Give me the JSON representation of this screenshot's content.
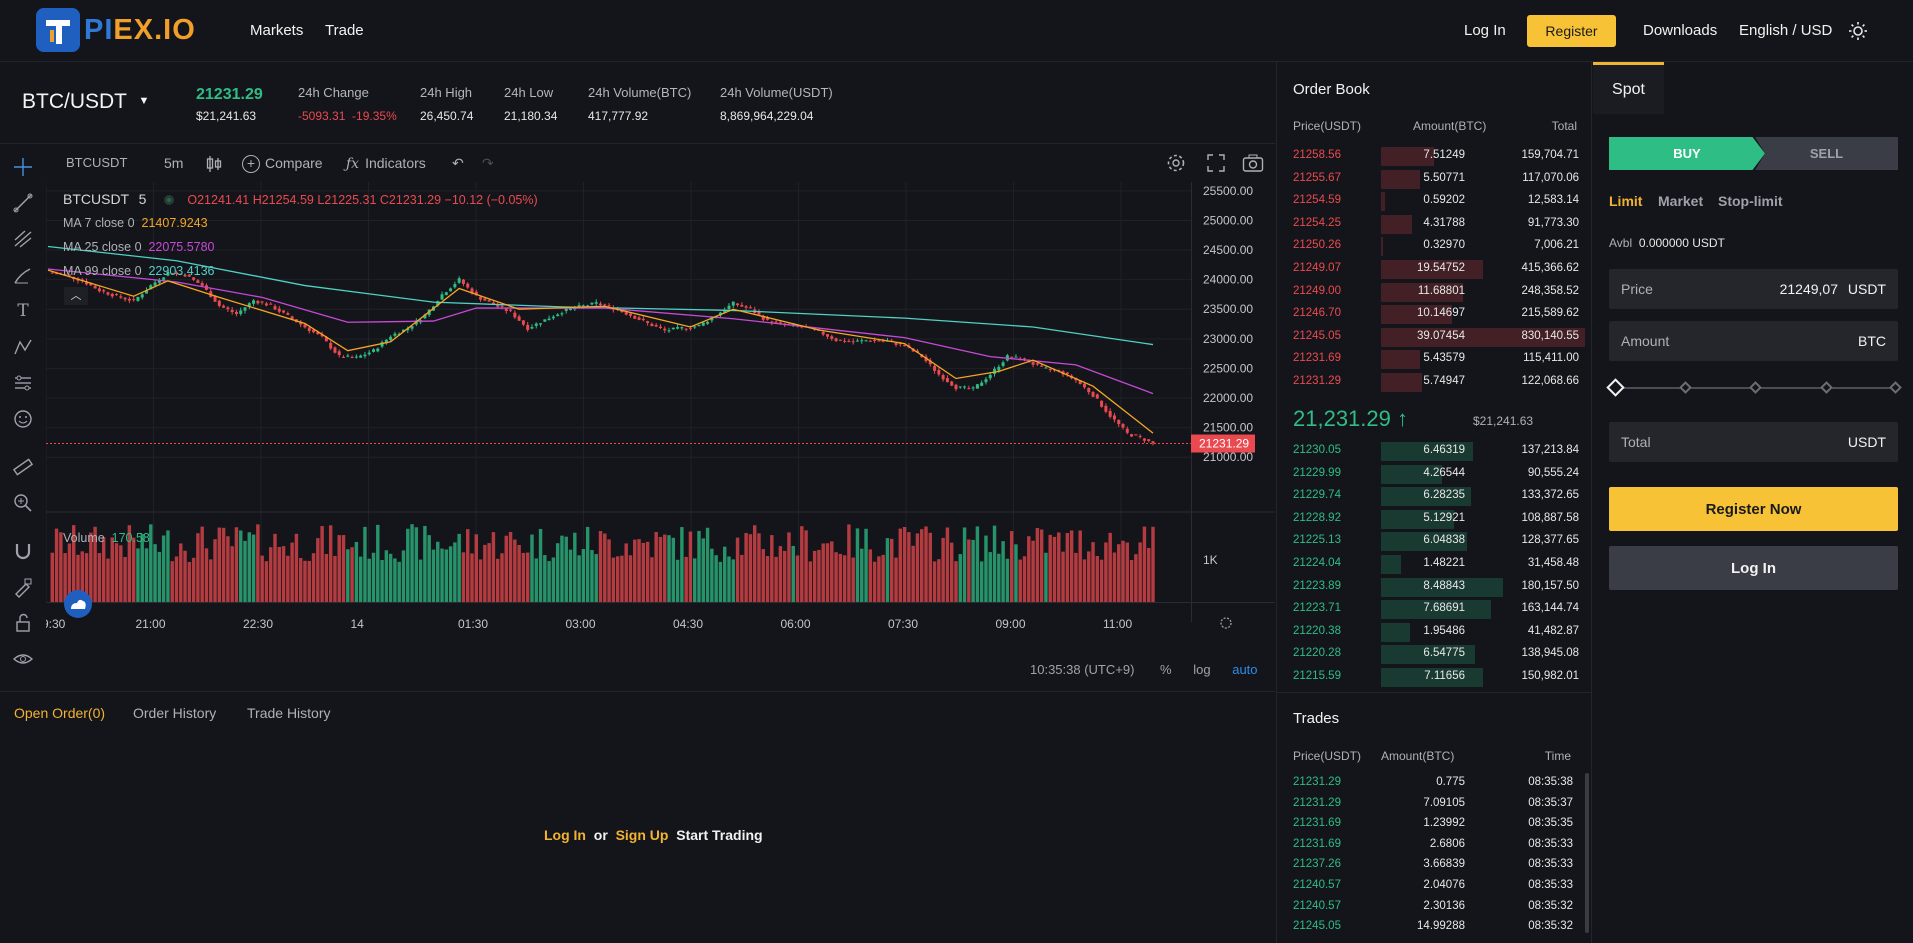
{
  "header": {
    "logo_text_a": "PI",
    "logo_text_b": "EX.IO",
    "nav": [
      "Markets",
      "Trade"
    ],
    "login": "Log In",
    "register": "Register",
    "downloads": "Downloads",
    "locale": "English / USD",
    "theme_icon": "sun-icon"
  },
  "ticker": {
    "pair": "BTC/USDT",
    "last_price": "21231.29",
    "last_price_fiat": "$21,241.63",
    "change_label": "24h Change",
    "change_value": "-5093.31",
    "change_pct": "-19.35%",
    "high_label": "24h High",
    "high_value": "26,450.74",
    "low_label": "24h Low",
    "low_value": "21,180.34",
    "vol_btc_label": "24h Volume(BTC)",
    "vol_btc_value": "417,777.92",
    "vol_usdt_label": "24h Volume(USDT)",
    "vol_usdt_value": "8,869,964,229.04"
  },
  "chart_toolbar": {
    "symbol": "BTCUSDT",
    "interval": "5m",
    "compare": "Compare",
    "indicators": "Indicators"
  },
  "chart_legend": {
    "symbol": "BTCUSDT",
    "interval": "5",
    "ohlc": "O21241.41  H21254.59  L21225.31  C21231.29  −10.12 (−0.05%)",
    "ma7_label": "MA 7 close 0",
    "ma7_value": "21407.9243",
    "ma25_label": "MA 25 close 0",
    "ma25_value": "22075.5780",
    "ma99_label": "MA 99 close 0",
    "ma99_value": "22903.4136",
    "volume_label": "Volume",
    "volume_value": "170.58"
  },
  "chart_footer": {
    "time": "10:35:38 (UTC+9)",
    "pct": "%",
    "log": "log",
    "auto": "auto"
  },
  "chart_data": {
    "type": "candlestick",
    "symbol": "BTCUSDT",
    "interval": "5m",
    "y_ticks": [
      "25500.00",
      "25000.00",
      "24500.00",
      "24000.00",
      "23500.00",
      "23000.00",
      "22500.00",
      "22000.00",
      "21500.00",
      "21000.00"
    ],
    "ylim": [
      20750,
      25650
    ],
    "x_ticks": [
      ":9:30",
      "21:00",
      "22:30",
      "14",
      "01:30",
      "03:00",
      "04:30",
      "06:00",
      "07:30",
      "09:00",
      "11:00"
    ],
    "last_price_label": "21231.29",
    "volume_tick": "1K",
    "close_path": [
      [
        0,
        24120
      ],
      [
        4,
        24080
      ],
      [
        8,
        23980
      ],
      [
        12,
        23820
      ],
      [
        16,
        23720
      ],
      [
        20,
        23640
      ],
      [
        24,
        23900
      ],
      [
        28,
        24120
      ],
      [
        32,
        24080
      ],
      [
        36,
        23900
      ],
      [
        40,
        23560
      ],
      [
        44,
        23420
      ],
      [
        48,
        23650
      ],
      [
        52,
        23560
      ],
      [
        56,
        23380
      ],
      [
        60,
        23200
      ],
      [
        64,
        23020
      ],
      [
        68,
        22700
      ],
      [
        72,
        22680
      ],
      [
        76,
        22800
      ],
      [
        80,
        23050
      ],
      [
        84,
        23180
      ],
      [
        88,
        23400
      ],
      [
        92,
        23750
      ],
      [
        96,
        24000
      ],
      [
        100,
        23720
      ],
      [
        104,
        23580
      ],
      [
        108,
        23450
      ],
      [
        112,
        23180
      ],
      [
        116,
        23320
      ],
      [
        120,
        23460
      ],
      [
        124,
        23540
      ],
      [
        128,
        23600
      ],
      [
        132,
        23520
      ],
      [
        136,
        23400
      ],
      [
        140,
        23260
      ],
      [
        144,
        23140
      ],
      [
        148,
        23180
      ],
      [
        152,
        23220
      ],
      [
        156,
        23400
      ],
      [
        160,
        23600
      ],
      [
        164,
        23500
      ],
      [
        168,
        23300
      ],
      [
        172,
        23240
      ],
      [
        176,
        23200
      ],
      [
        180,
        23120
      ],
      [
        184,
        22980
      ],
      [
        188,
        22950
      ],
      [
        192,
        22980
      ],
      [
        196,
        22960
      ],
      [
        200,
        22880
      ],
      [
        204,
        22700
      ],
      [
        208,
        22400
      ],
      [
        212,
        22180
      ],
      [
        216,
        22150
      ],
      [
        220,
        22400
      ],
      [
        224,
        22700
      ],
      [
        228,
        22650
      ],
      [
        232,
        22500
      ],
      [
        236,
        22460
      ],
      [
        240,
        22300
      ],
      [
        244,
        22050
      ],
      [
        248,
        21700
      ],
      [
        252,
        21400
      ],
      [
        256,
        21300
      ],
      [
        258,
        21231
      ]
    ],
    "ma7_path": [
      [
        0,
        24160
      ],
      [
        20,
        23720
      ],
      [
        28,
        23980
      ],
      [
        40,
        23700
      ],
      [
        60,
        23260
      ],
      [
        70,
        22800
      ],
      [
        80,
        22950
      ],
      [
        96,
        23850
      ],
      [
        110,
        23500
      ],
      [
        130,
        23550
      ],
      [
        150,
        23200
      ],
      [
        160,
        23500
      ],
      [
        180,
        23150
      ],
      [
        200,
        22920
      ],
      [
        212,
        22330
      ],
      [
        222,
        22450
      ],
      [
        230,
        22640
      ],
      [
        244,
        22200
      ],
      [
        258,
        21407
      ]
    ],
    "ma25_path": [
      [
        0,
        24180
      ],
      [
        30,
        23960
      ],
      [
        50,
        23700
      ],
      [
        70,
        23280
      ],
      [
        90,
        23300
      ],
      [
        100,
        23520
      ],
      [
        130,
        23520
      ],
      [
        160,
        23340
      ],
      [
        180,
        23180
      ],
      [
        200,
        23020
      ],
      [
        220,
        22700
      ],
      [
        240,
        22560
      ],
      [
        258,
        22075
      ]
    ],
    "ma99_path": [
      [
        0,
        24560
      ],
      [
        30,
        24320
      ],
      [
        60,
        23900
      ],
      [
        90,
        23620
      ],
      [
        120,
        23540
      ],
      [
        160,
        23480
      ],
      [
        200,
        23350
      ],
      [
        230,
        23200
      ],
      [
        258,
        22903
      ]
    ]
  },
  "order_tabs": [
    "Open Order(0)",
    "Order History",
    "Trade History"
  ],
  "login_hint": {
    "login": "Log In",
    "or": "or",
    "signup": "Sign Up",
    "start": "Start Trading"
  },
  "orderbook": {
    "title": "Order Book",
    "col_price": "Price(USDT)",
    "col_amount": "Amount(BTC)",
    "col_total": "Total",
    "asks": [
      {
        "price": "21258.56",
        "amount": "7.51249",
        "total": "159,704.71",
        "depth": 0.26
      },
      {
        "price": "21255.67",
        "amount": "5.50771",
        "total": "117,070.06",
        "depth": 0.19
      },
      {
        "price": "21254.59",
        "amount": "0.59202",
        "total": "12,583.14",
        "depth": 0.02
      },
      {
        "price": "21254.25",
        "amount": "4.31788",
        "total": "91,773.30",
        "depth": 0.15
      },
      {
        "price": "21250.26",
        "amount": "0.32970",
        "total": "7,006.21",
        "depth": 0.01
      },
      {
        "price": "21249.07",
        "amount": "19.54752",
        "total": "415,366.62",
        "depth": 0.5
      },
      {
        "price": "21249.00",
        "amount": "11.68801",
        "total": "248,358.52",
        "depth": 0.4
      },
      {
        "price": "21246.70",
        "amount": "10.14697",
        "total": "215,589.62",
        "depth": 0.35
      },
      {
        "price": "21245.05",
        "amount": "39.07454",
        "total": "830,140.55",
        "depth": 1.0
      },
      {
        "price": "21231.69",
        "amount": "5.43579",
        "total": "115,411.00",
        "depth": 0.19
      },
      {
        "price": "21231.29",
        "amount": "5.74947",
        "total": "122,068.66",
        "depth": 0.2
      }
    ],
    "mid_price": "21,231.29 ↑",
    "mid_fiat": "$21,241.63",
    "bids": [
      {
        "price": "21230.05",
        "amount": "6.46319",
        "total": "137,213.84",
        "depth": 0.45
      },
      {
        "price": "21229.99",
        "amount": "4.26544",
        "total": "90,555.24",
        "depth": 0.3
      },
      {
        "price": "21229.74",
        "amount": "6.28235",
        "total": "133,372.65",
        "depth": 0.44
      },
      {
        "price": "21228.92",
        "amount": "5.12921",
        "total": "108,887.58",
        "depth": 0.36
      },
      {
        "price": "21225.13",
        "amount": "6.04838",
        "total": "128,377.65",
        "depth": 0.42
      },
      {
        "price": "21224.04",
        "amount": "1.48221",
        "total": "31,458.48",
        "depth": 0.1
      },
      {
        "price": "21223.89",
        "amount": "8.48843",
        "total": "180,157.50",
        "depth": 0.6
      },
      {
        "price": "21223.71",
        "amount": "7.68691",
        "total": "163,144.74",
        "depth": 0.54
      },
      {
        "price": "21220.38",
        "amount": "1.95486",
        "total": "41,482.87",
        "depth": 0.14
      },
      {
        "price": "21220.28",
        "amount": "6.54775",
        "total": "138,945.08",
        "depth": 0.46
      },
      {
        "price": "21215.59",
        "amount": "7.11656",
        "total": "150,982.01",
        "depth": 0.5
      }
    ]
  },
  "trades": {
    "title": "Trades",
    "col_price": "Price(USDT)",
    "col_amount": "Amount(BTC)",
    "col_time": "Time",
    "rows": [
      {
        "price": "21231.29",
        "amount": "0.775",
        "time": "08:35:38"
      },
      {
        "price": "21231.29",
        "amount": "7.09105",
        "time": "08:35:37"
      },
      {
        "price": "21231.69",
        "amount": "1.23992",
        "time": "08:35:35"
      },
      {
        "price": "21231.69",
        "amount": "2.6806",
        "time": "08:35:33"
      },
      {
        "price": "21237.26",
        "amount": "3.66839",
        "time": "08:35:33"
      },
      {
        "price": "21240.57",
        "amount": "2.04076",
        "time": "08:35:33"
      },
      {
        "price": "21240.57",
        "amount": "2.30136",
        "time": "08:35:32"
      },
      {
        "price": "21245.05",
        "amount": "14.99288",
        "time": "08:35:32"
      }
    ]
  },
  "spot": {
    "tab": "Spot",
    "buy": "BUY",
    "sell": "SELL",
    "order_types": [
      "Limit",
      "Market",
      "Stop-limit"
    ],
    "avbl_label": "Avbl",
    "avbl_value": "0.000000 USDT",
    "price_label": "Price",
    "price_value": "21249,07",
    "price_unit": "USDT",
    "amount_label": "Amount",
    "amount_unit": "BTC",
    "total_label": "Total",
    "total_unit": "USDT",
    "register_now": "Register Now",
    "login": "Log In"
  },
  "colors": {
    "up": "#2ebd85",
    "down": "#ea4a4f",
    "accent": "#f7c235",
    "ma7": "#f5a623",
    "ma25": "#c64ad6",
    "ma99": "#4fd1c5"
  }
}
